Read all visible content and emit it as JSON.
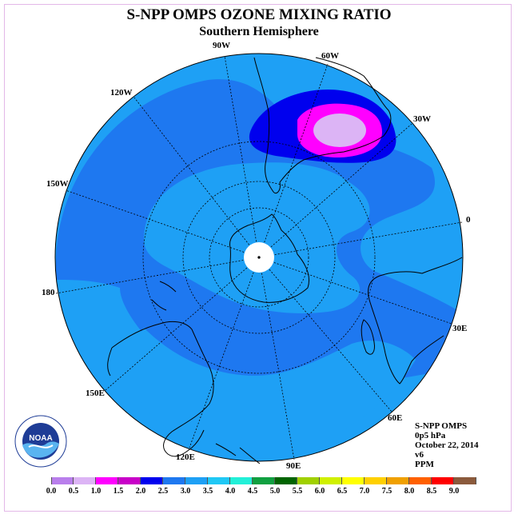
{
  "title": "S-NPP OMPS OZONE MIXING RATIO",
  "subtitle": "Southern Hemisphere",
  "longitude_labels": {
    "w90": "90W",
    "w60": "60W",
    "w30": "30W",
    "w120": "120W",
    "w150": "150W",
    "lon0": "0",
    "lon180": "180",
    "e30": "30E",
    "e60": "60E",
    "e90": "90E",
    "e120": "120E",
    "e150": "150E"
  },
  "info": {
    "instrument": "S-NPP OMPS",
    "level": "0p5 hPa",
    "date": "October 22, 2014",
    "version": "v6",
    "units": "PPM"
  },
  "logo": {
    "text": "NOAA",
    "icon": "noaa-logo"
  },
  "colorbar": {
    "colors": [
      "#b97fec",
      "#dcb4f5",
      "#ff00ff",
      "#c800c8",
      "#0000ee",
      "#1e78f0",
      "#1ea0f5",
      "#20c8f5",
      "#22f0d8",
      "#10a040",
      "#006400",
      "#a0d000",
      "#d0f000",
      "#ffff00",
      "#ffd000",
      "#f0a000",
      "#ff6000",
      "#ff0000",
      "#8b5a3c"
    ],
    "ticks": [
      "0.0",
      "0.5",
      "1.0",
      "1.5",
      "2.0",
      "2.5",
      "3.0",
      "3.5",
      "4.0",
      "4.5",
      "5.0",
      "5.5",
      "6.0",
      "6.5",
      "7.0",
      "7.5",
      "8.0",
      "8.5",
      "9.0"
    ]
  }
}
